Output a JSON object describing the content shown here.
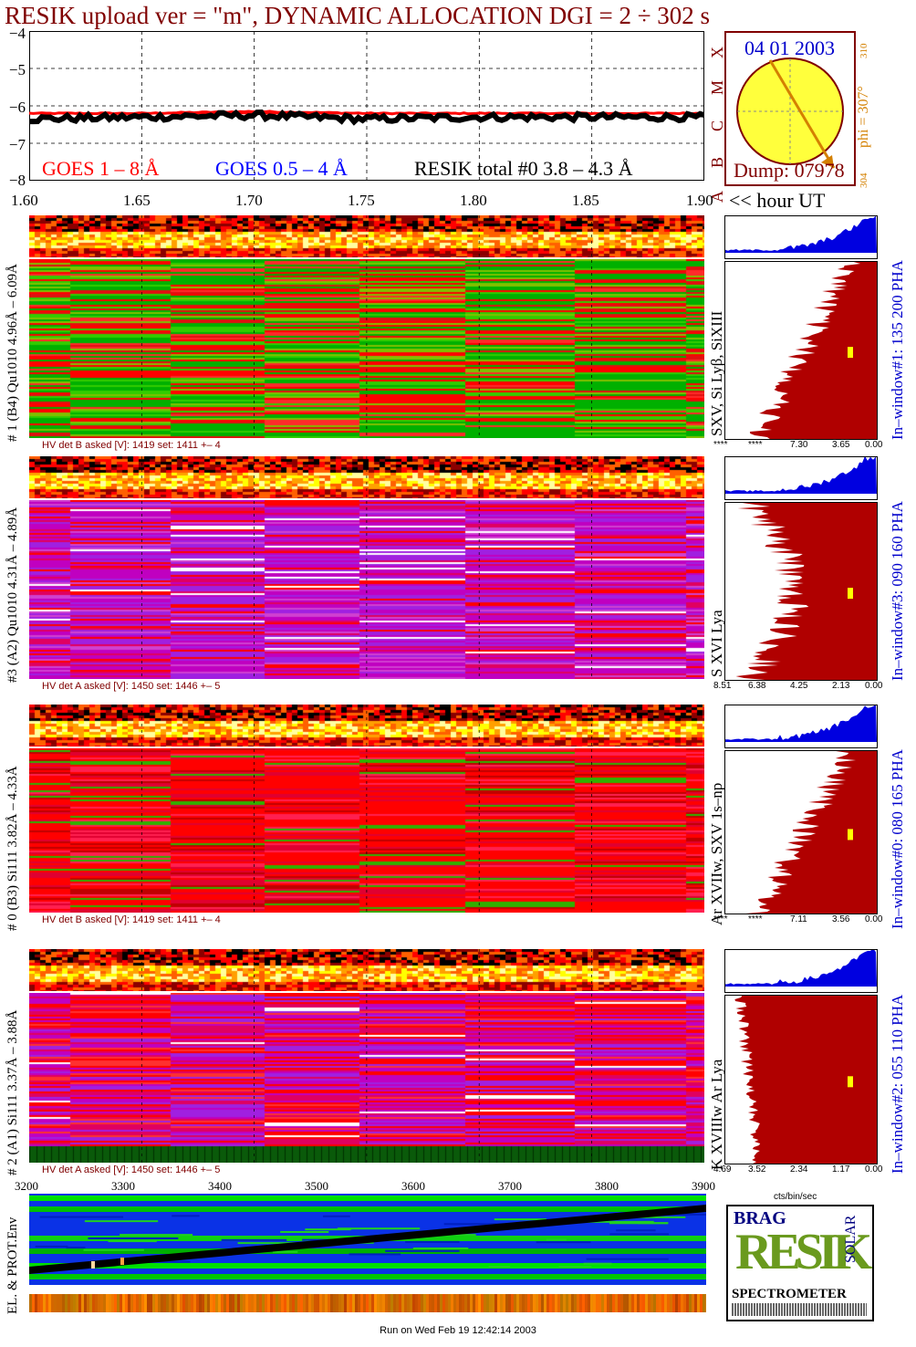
{
  "title": "RESIK upload ver = \"m\", DYNAMIC ALLOCATION  DGI =   2 ÷ 302 s",
  "goes_panel": {
    "legend_goes18": "GOES 1 – 8 Å",
    "legend_goes054": "GOES 0.5 – 4 Å",
    "legend_resik": "RESIK total #0  3.8 – 4.3 Å",
    "class_letters": [
      "X",
      "M",
      "C",
      "B",
      "A"
    ],
    "y_ticks": [
      "−4",
      "−5",
      "−6",
      "−7",
      "−8"
    ],
    "x_ticks": [
      "1.60",
      "1.65",
      "1.70",
      "1.75",
      "1.80",
      "1.85",
      "1.90"
    ],
    "x_unit_label": "<< hour UT",
    "colors": {
      "goes18": "#ff0000",
      "goes054": "#0000ff",
      "resik": "#000000"
    }
  },
  "sun_panel": {
    "date": "04 01 2003",
    "dump": "Dump: 07978",
    "phi": "phi = 307°",
    "phi_top": "310",
    "phi_bottom": "304"
  },
  "detectors": [
    {
      "side_label": "# 1 (B4) Qu1010 4.96Å – 6.09Å",
      "lines_label": "SXV, Si Lyβ, SiXIII",
      "hv_text": "HV det B asked [V]:  1419 set:  1411  +–    4",
      "window_label": "In–window#1:  135 200 PHA",
      "pha_ticks": [
        "****",
        "****",
        "7.30",
        "3.65",
        "0.00"
      ],
      "palette": "green"
    },
    {
      "side_label": "#3 (A2) Qu1010  4.31Å – 4.89Å",
      "lines_label": "S XVI Lya",
      "hv_text": "HV det A asked [V]:  1450 set:  1446  +–    5",
      "window_label": "In–window#3:  090 160 PHA",
      "pha_ticks": [
        "8.51",
        "6.38",
        "4.25",
        "2.13",
        "0.00"
      ],
      "palette": "purple"
    },
    {
      "side_label": "# 0 (B3) Si111  3.82Å – 4.33Å",
      "lines_label": "Ar XVIIw, SXV 1s–np",
      "hv_text": "HV det B asked [V]:  1419 set:  1411  +–    4",
      "window_label": "In–window#0:  080 165 PHA",
      "pha_ticks": [
        "****",
        "****",
        "7.11",
        "3.56",
        "0.00"
      ],
      "palette": "red"
    },
    {
      "side_label": "# 2 (A1) Si111  3.37Å – 3.88Å",
      "lines_label": "K XVIIIw  Ar Lya",
      "hv_text": "HV det A asked [V]:  1450 set:  1446  +–    5",
      "window_label": "In–window#2:  055 110 PHA",
      "pha_ticks": [
        "4.69",
        "3.52",
        "2.34",
        "1.17",
        "0.00"
      ],
      "palette": "purple2"
    }
  ],
  "pha_unit": "cts/bin/sec",
  "env_panel": {
    "x_ticks": [
      "3200",
      "3300",
      "3400",
      "3500",
      "3600",
      "3700",
      "3800",
      "3900"
    ],
    "side_label": "EL. & PROT.Env"
  },
  "logo": {
    "letters": "RESIK",
    "small": "BRAG",
    "solar": "SOLAR",
    "caption": "SPECTROMETER"
  },
  "footer": "Run on Wed Feb 19 12:42:14 2003",
  "chart_data": [
    {
      "type": "line",
      "title": "RESIK upload ver = \"m\", DYNAMIC ALLOCATION  DGI =   2 ÷ 302 s",
      "xlabel": "<< hour UT",
      "ylabel": "",
      "xlim": [
        1.6,
        1.9
      ],
      "ylim": [
        -8,
        -4
      ],
      "series": [
        {
          "name": "GOES 1 – 8 Å",
          "color": "#ff0000",
          "x": [
            1.6,
            1.65,
            1.7,
            1.75,
            1.8,
            1.85,
            1.9
          ],
          "y": [
            -6.2,
            -6.2,
            -6.15,
            -6.2,
            -6.2,
            -6.2,
            -6.2
          ]
        },
        {
          "name": "RESIK total #0  3.8 – 4.3 Å",
          "color": "#000000",
          "x": [
            1.6,
            1.65,
            1.7,
            1.75,
            1.8,
            1.85,
            1.9
          ],
          "y": [
            -6.35,
            -6.3,
            -6.25,
            -6.35,
            -6.3,
            -6.3,
            -6.3
          ]
        }
      ]
    }
  ]
}
